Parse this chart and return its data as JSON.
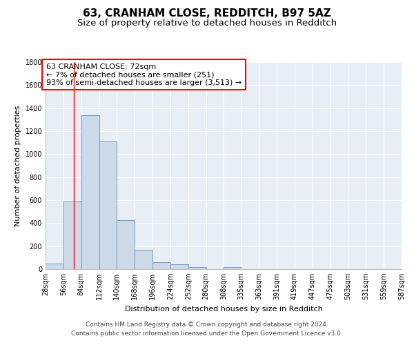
{
  "title": "63, CRANHAM CLOSE, REDDITCH, B97 5AZ",
  "subtitle": "Size of property relative to detached houses in Redditch",
  "xlabel": "Distribution of detached houses by size in Redditch",
  "ylabel": "Number of detached properties",
  "bin_edges": [
    28,
    56,
    84,
    112,
    140,
    168,
    196,
    224,
    252,
    280,
    308,
    335,
    363,
    391,
    419,
    447,
    475,
    503,
    531,
    559,
    587
  ],
  "bar_heights": [
    50,
    595,
    1340,
    1110,
    425,
    170,
    60,
    40,
    20,
    0,
    20,
    0,
    0,
    0,
    0,
    0,
    0,
    0,
    0,
    0
  ],
  "bar_color": "#ccd9e8",
  "bar_edge_color": "#7799bb",
  "red_line_x": 72,
  "annotation_line1": "63 CRANHAM CLOSE: 72sqm",
  "annotation_line2": "← 7% of detached houses are smaller (251)",
  "annotation_line3": "93% of semi-detached houses are larger (3,513) →",
  "ylim": [
    0,
    1800
  ],
  "yticks": [
    0,
    200,
    400,
    600,
    800,
    1000,
    1200,
    1400,
    1600,
    1800
  ],
  "footer_line1": "Contains HM Land Registry data © Crown copyright and database right 2024.",
  "footer_line2": "Contains public sector information licensed under the Open Government Licence v3.0.",
  "background_color": "#e8eef5",
  "grid_color": "#ffffff",
  "title_fontsize": 11,
  "subtitle_fontsize": 9.5,
  "axis_label_fontsize": 8,
  "tick_fontsize": 7,
  "annotation_fontsize": 8,
  "footer_fontsize": 6.5
}
